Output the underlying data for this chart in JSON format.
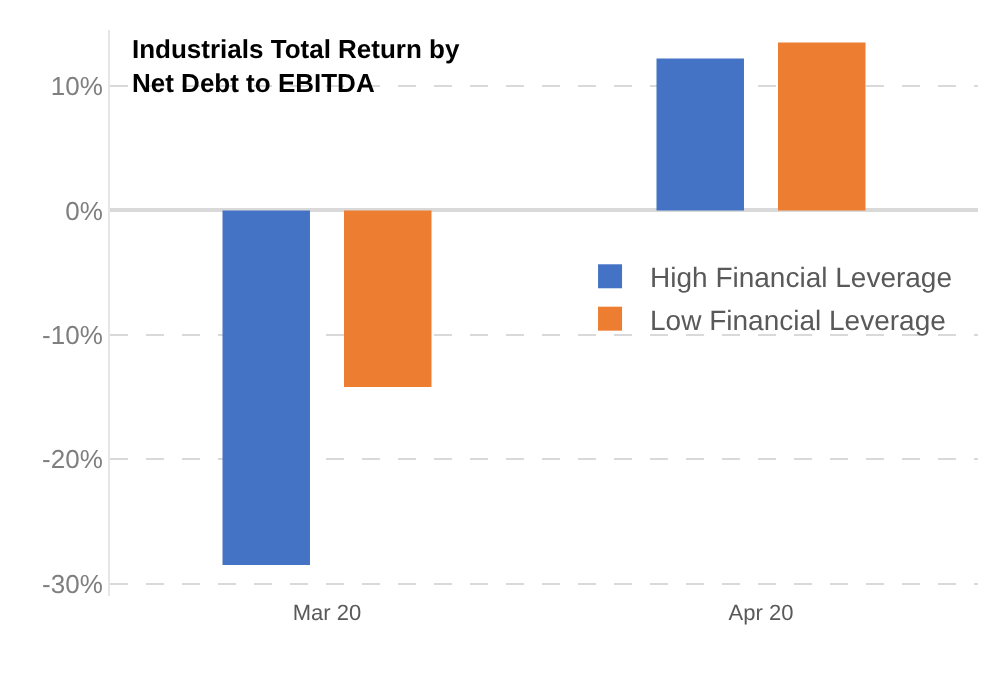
{
  "chart_data": {
    "type": "bar",
    "title": "Industrials Total Return by Net Debt to EBITDA",
    "categories": [
      "Mar 20",
      "Apr 20"
    ],
    "series": [
      {
        "name": "High Financial Leverage",
        "color": "#4472c4",
        "values": [
          -28.5,
          12.2
        ]
      },
      {
        "name": "Low Financial Leverage",
        "color": "#ed7d31",
        "values": [
          -14.2,
          13.5
        ]
      }
    ],
    "ylim": [
      -31,
      14.5
    ],
    "yticks": [
      {
        "value": -30,
        "label": "-30%"
      },
      {
        "value": -20,
        "label": "-20%"
      },
      {
        "value": -10,
        "label": "-10%"
      },
      {
        "value": 0,
        "label": "0%"
      },
      {
        "value": 10,
        "label": "10%"
      }
    ],
    "grid": "y",
    "legend": "right"
  }
}
